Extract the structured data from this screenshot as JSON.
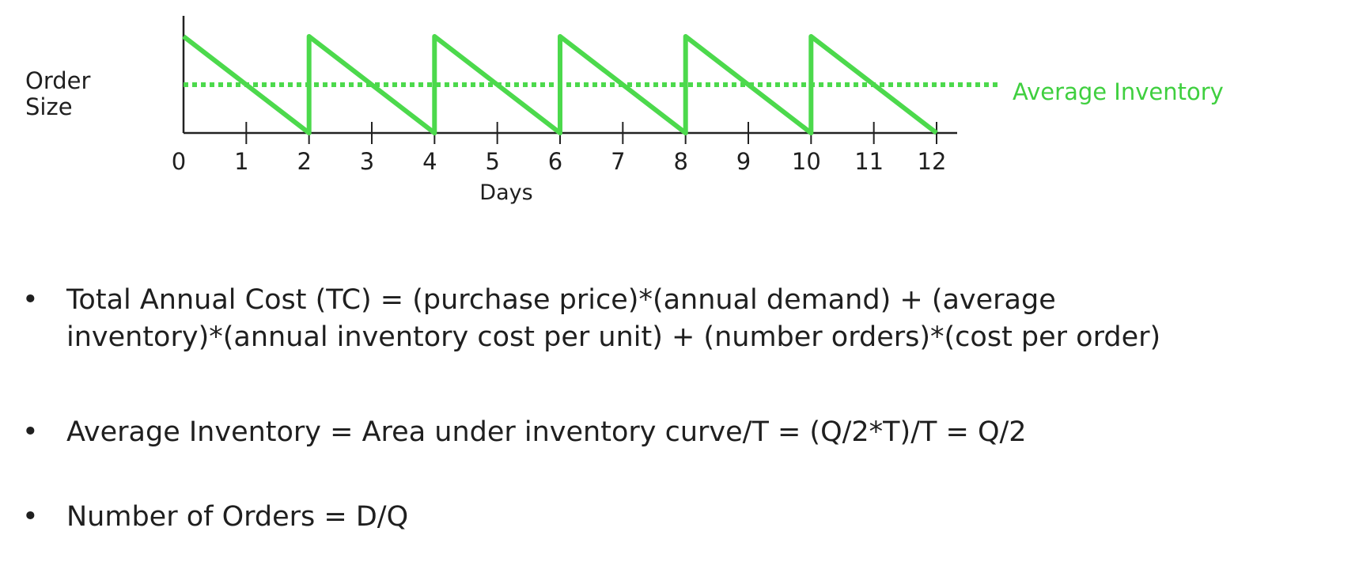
{
  "chart_data": {
    "type": "line",
    "ylabel": "Order\nSize",
    "xlabel": "Days",
    "xlim": [
      0,
      12
    ],
    "x_ticks": [
      "0",
      "1",
      "2",
      "3",
      "4",
      "5",
      "6",
      "7",
      "8",
      "9",
      "10",
      "11",
      "12"
    ],
    "ylim": [
      0,
      1
    ],
    "grid": false,
    "series": [
      {
        "style": "solid",
        "color": "#4cd94c",
        "x": [
          0,
          2,
          2,
          4,
          4,
          6,
          6,
          8,
          8,
          10,
          10,
          12
        ],
        "y": [
          1,
          0,
          1,
          0,
          1,
          0,
          1,
          0,
          1,
          0,
          1,
          0
        ]
      },
      {
        "name": "Average Inventory",
        "style": "dotted",
        "color": "#4cd94c",
        "x": [
          0,
          12
        ],
        "y": [
          0.5,
          0.5
        ]
      }
    ],
    "annotations": [
      {
        "text": "Average Inventory",
        "color": "#3fcf3f"
      }
    ]
  },
  "bullets": [
    "•",
    "Total Annual Cost (TC) = (purchase price)*(annual demand) + (average",
    "inventory)*(annual inventory cost per unit) + (number orders)*(cost per order)",
    "Average Inventory = Area under inventory curve/T = (Q/2*T)/T = Q/2",
    "Number of Orders = D/Q"
  ]
}
